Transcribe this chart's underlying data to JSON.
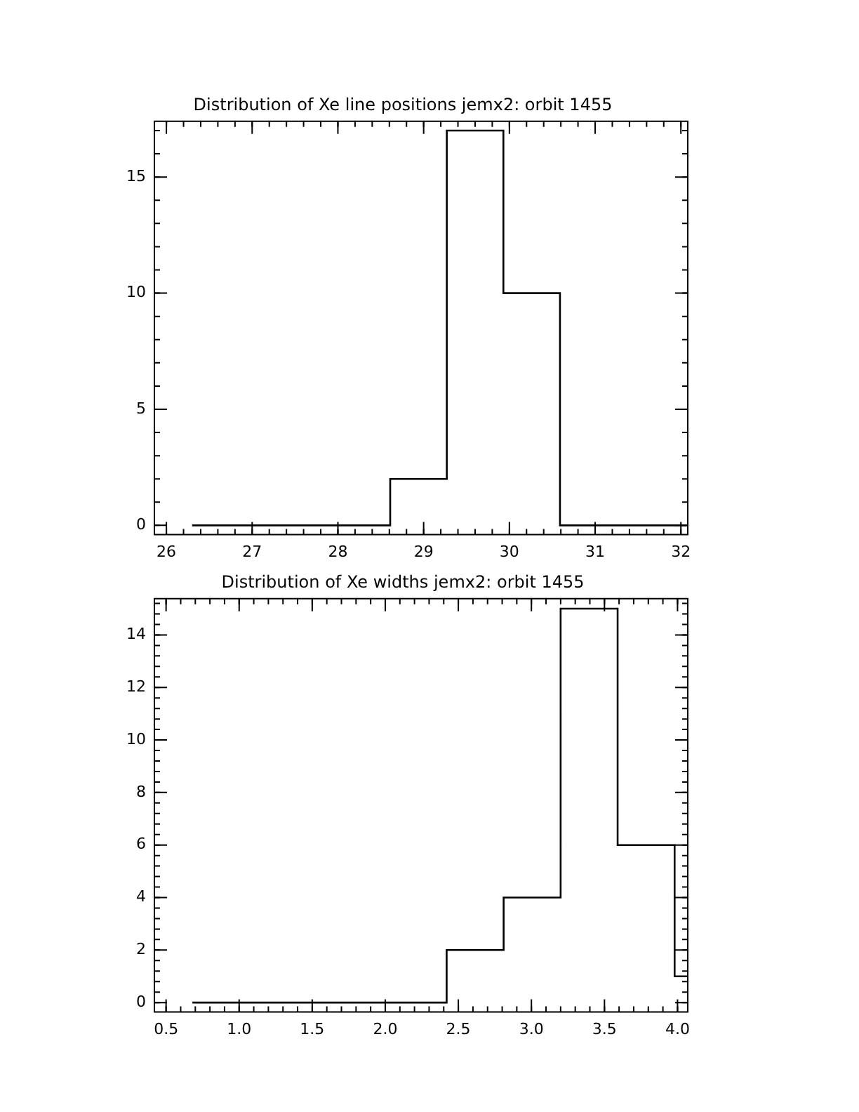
{
  "chart_data": [
    {
      "type": "histogram",
      "title": "Distribution of Xe line positions jemx2: orbit 1455",
      "bins": [
        26.3,
        28.61,
        29.27,
        29.93,
        30.59,
        32.07
      ],
      "values": [
        0,
        2,
        17,
        10,
        0
      ],
      "color": "#000000",
      "xlim": [
        25.86,
        32.08
      ],
      "ylim": [
        -0.4,
        17.4
      ],
      "xticks": [
        26,
        27,
        28,
        29,
        30,
        31,
        32
      ],
      "yticks": [
        0,
        5,
        10,
        15
      ]
    },
    {
      "type": "histogram",
      "title": "Distribution of Xe widths jemx2: orbit 1455",
      "bins": [
        0.68,
        2.42,
        2.81,
        3.2,
        3.59,
        3.98,
        4.07
      ],
      "values": [
        0,
        2,
        4,
        15,
        6,
        1
      ],
      "color": "#000000",
      "xlim": [
        0.42,
        4.07
      ],
      "ylim": [
        -0.36,
        15.38
      ],
      "xticks": [
        {
          "value": 0.5,
          "label": "0.5"
        },
        {
          "value": 1,
          "label": "1.0"
        },
        {
          "value": 1.5,
          "label": "1.5"
        },
        {
          "value": 2,
          "label": "2.0"
        },
        {
          "value": 2.5,
          "label": "2.5"
        },
        {
          "value": 3,
          "label": "3.0"
        },
        {
          "value": 3.5,
          "label": "3.5"
        },
        {
          "value": 4,
          "label": "4.0"
        }
      ],
      "yticks": [
        0,
        2,
        4,
        6,
        8,
        10,
        12,
        14
      ]
    }
  ]
}
